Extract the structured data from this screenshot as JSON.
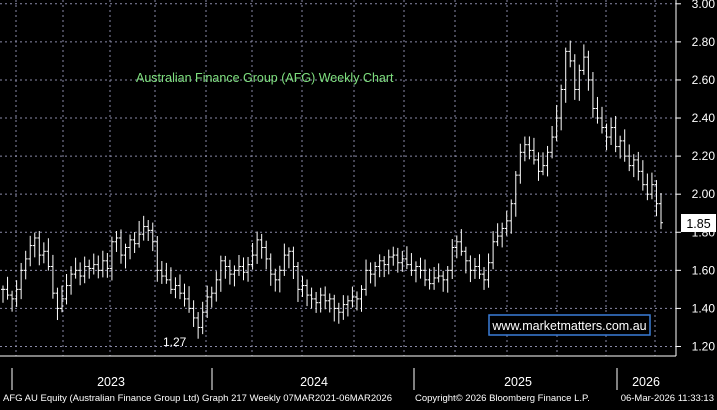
{
  "chart_data": {
    "type": "ohlc",
    "title": "Australian Finance Group (AFG) Weekly Chart",
    "watermark": "www.marketmatters.com.au",
    "ylim": [
      1.15,
      3.02
    ],
    "y_ticks": [
      "3.00",
      "2.80",
      "2.60",
      "2.40",
      "2.20",
      "2.00",
      "1.80",
      "1.60",
      "1.40",
      "1.20"
    ],
    "x_tick_labels": [
      "2023",
      "2024",
      "2025",
      "2026"
    ],
    "last_price_label": "1.85",
    "low_annotation": "1.27",
    "grid": true,
    "colors": {
      "background": "#000000",
      "bars": "#ffffff",
      "grid": "#8a8aa8",
      "title": "#7fe07f",
      "watermark_border": "#3a7dd8",
      "last_price_box": "#ffffff"
    },
    "closes": [
      1.5,
      1.47,
      1.45,
      1.5,
      1.6,
      1.66,
      1.73,
      1.77,
      1.68,
      1.7,
      1.62,
      1.48,
      1.4,
      1.45,
      1.52,
      1.58,
      1.6,
      1.57,
      1.62,
      1.61,
      1.63,
      1.6,
      1.65,
      1.61,
      1.75,
      1.77,
      1.68,
      1.72,
      1.76,
      1.74,
      1.79,
      1.83,
      1.81,
      1.75,
      1.6,
      1.57,
      1.55,
      1.5,
      1.52,
      1.48,
      1.45,
      1.4,
      1.35,
      1.3,
      1.38,
      1.46,
      1.48,
      1.55,
      1.65,
      1.62,
      1.58,
      1.6,
      1.62,
      1.59,
      1.63,
      1.68,
      1.76,
      1.72,
      1.66,
      1.58,
      1.55,
      1.6,
      1.68,
      1.7,
      1.62,
      1.5,
      1.52,
      1.47,
      1.45,
      1.43,
      1.47,
      1.44,
      1.45,
      1.4,
      1.38,
      1.42,
      1.44,
      1.46,
      1.45,
      1.5,
      1.6,
      1.58,
      1.62,
      1.65,
      1.63,
      1.67,
      1.68,
      1.64,
      1.66,
      1.63,
      1.6,
      1.62,
      1.6,
      1.55,
      1.53,
      1.56,
      1.57,
      1.55,
      1.6,
      1.72,
      1.75,
      1.7,
      1.65,
      1.6,
      1.62,
      1.58,
      1.55,
      1.64,
      1.75,
      1.78,
      1.82,
      1.86,
      1.95,
      2.1,
      2.22,
      2.26,
      2.23,
      2.18,
      2.12,
      2.15,
      2.22,
      2.3,
      2.4,
      2.55,
      2.75,
      2.7,
      2.55,
      2.65,
      2.72,
      2.6,
      2.45,
      2.4,
      2.35,
      2.3,
      2.35,
      2.25,
      2.28,
      2.2,
      2.15,
      2.18,
      2.12,
      2.05,
      2.0,
      2.05,
      1.95,
      1.85
    ]
  },
  "footer": {
    "left": "AFG AU Equity (Australian Finance Group Ltd) Graph 217 Weekly 07MAR2021-06MAR2026",
    "center": "Copyright© 2026 Bloomberg Finance L.P.",
    "right": "06-Mar-2026 11:33:13"
  }
}
